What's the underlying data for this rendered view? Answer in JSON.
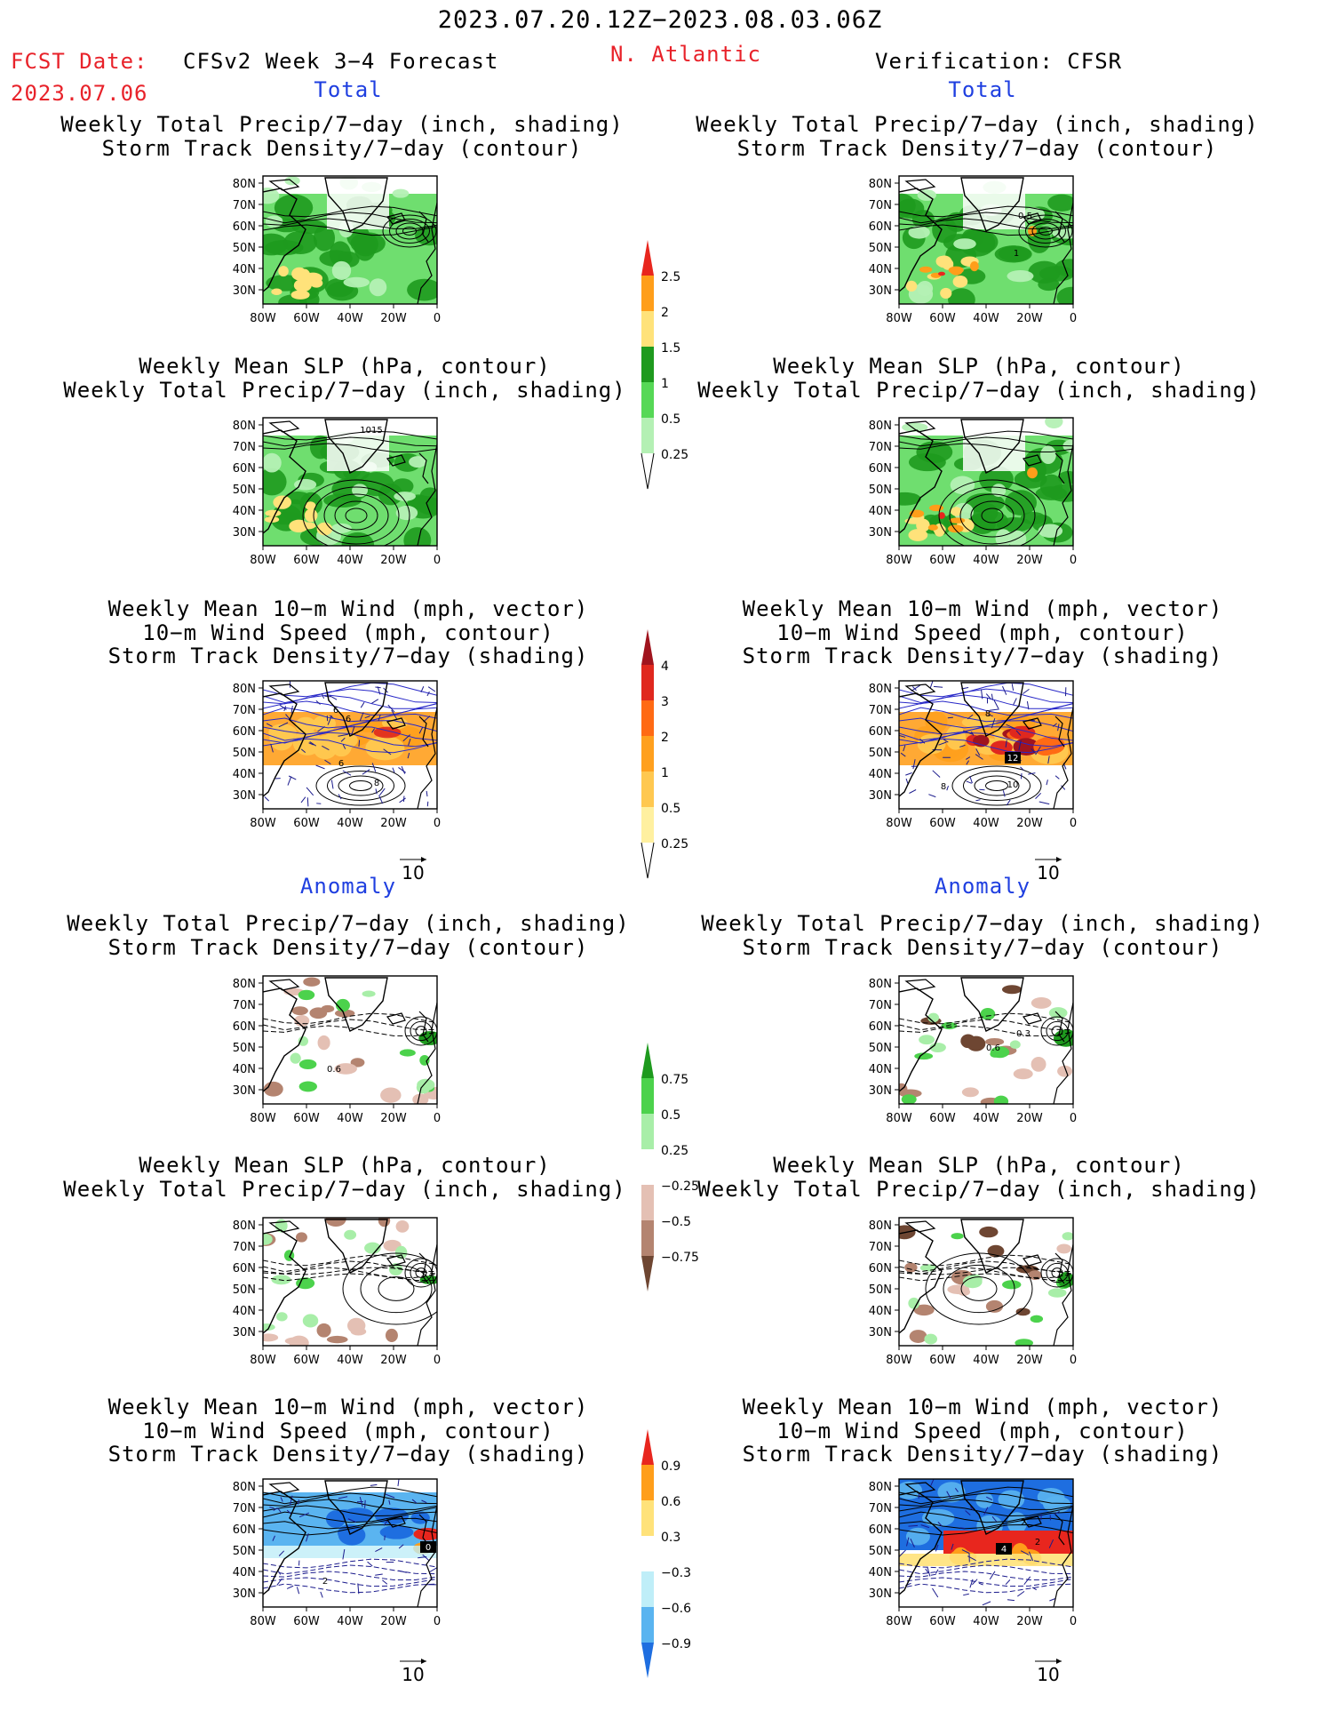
{
  "header": {
    "date_range": "2023.07.20.12Z−2023.08.03.06Z",
    "fcst_label": "FCST Date:",
    "fcst_date": "2023.07.06",
    "model": "CFSv2 Week 3−4 Forecast",
    "region": "N. Atlantic",
    "verification": "Verification: CFSR"
  },
  "sections": {
    "total": "Total",
    "anomaly": "Anomaly"
  },
  "titles": {
    "precip_storm": [
      "Weekly Total Precip/7−day (inch, shading)",
      "Storm Track Density/7−day (contour)"
    ],
    "slp_precip": [
      "Weekly Mean SLP (hPa, contour)",
      "Weekly Total Precip/7−day (inch, shading)"
    ],
    "wind_storm": [
      "Weekly Mean 10−m Wind (mph, vector)",
      "10−m Wind Speed (mph, contour)",
      "Storm Track Density/7−day (shading)"
    ]
  },
  "axes": {
    "lat_labels": [
      "80N",
      "70N",
      "60N",
      "50N",
      "40N",
      "30N"
    ],
    "lon_labels": [
      "80W",
      "60W",
      "40W",
      "20W",
      "0"
    ]
  },
  "vector_ref": "10",
  "map_labels": {
    "p1_right": [
      "0.5",
      "1"
    ],
    "p2_left": [
      "1015"
    ],
    "p3_left": [
      "6",
      "6",
      "8",
      "6"
    ],
    "p3_right": [
      "12",
      "10",
      "8",
      "8"
    ],
    "p4_left": [
      "0.6"
    ],
    "p4_right": [
      "0.6",
      "0.3"
    ],
    "p6_left": [
      "0",
      "2"
    ],
    "p6_right": [
      "4",
      "2",
      "2"
    ]
  },
  "colorbars": [
    {
      "labels": [
        "2.5",
        "2",
        "1.5",
        "1",
        "0.5",
        "0.25"
      ],
      "colors": [
        "#e8261e",
        "#ff9e1a",
        "#ffe27a",
        "#1e9a1e",
        "#56d856",
        "#b4f0b4"
      ]
    },
    {
      "labels": [
        "4",
        "3",
        "2",
        "1",
        "0.5",
        "0.25"
      ],
      "colors": [
        "#a0141e",
        "#e0281e",
        "#ff6a14",
        "#ffa01e",
        "#ffc850",
        "#fff0a0"
      ]
    },
    {
      "labels": [
        "0.75",
        "0.5",
        "0.25",
        "−0.25",
        "−0.5",
        "−0.75"
      ],
      "colors": [
        "#1e9a1e",
        "#4cd24c",
        "#a8eea8",
        "#ffffff",
        "#e4c0b4",
        "#b48470",
        "#6e4632"
      ]
    },
    {
      "labels": [
        "0.9",
        "0.6",
        "0.3",
        "−0.3",
        "−0.6",
        "−0.9"
      ],
      "colors": [
        "#e8261e",
        "#ff9e1a",
        "#ffe27a",
        "#ffffff",
        "#bfeef8",
        "#5ab4f0",
        "#1e6ee0"
      ]
    }
  ]
}
